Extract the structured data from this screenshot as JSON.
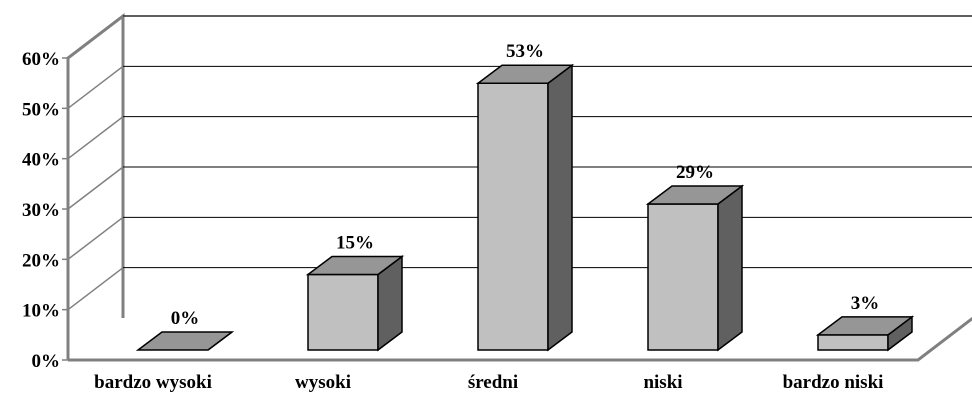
{
  "chart_data": {
    "type": "bar",
    "style": "3d-column",
    "title": "",
    "xlabel": "",
    "ylabel": "",
    "categories": [
      "bardzo wysoki",
      "wysoki",
      "średni",
      "niski",
      "bardzo niski"
    ],
    "values": [
      0,
      15,
      53,
      29,
      3
    ],
    "data_labels": [
      "0%",
      "15%",
      "53%",
      "29%",
      "3%"
    ],
    "ylim": [
      0,
      60
    ],
    "y_ticks": [
      0,
      10,
      20,
      30,
      40,
      50,
      60
    ],
    "y_tick_labels": [
      "0%",
      "10%",
      "20%",
      "30%",
      "40%",
      "50%",
      "60%"
    ],
    "grid": true,
    "legend": "none",
    "colors": {
      "bar_front": "#c0c0c0",
      "bar_top": "#969696",
      "bar_side": "#606060",
      "wall_line": "#808080",
      "gridline": "#000000"
    }
  }
}
